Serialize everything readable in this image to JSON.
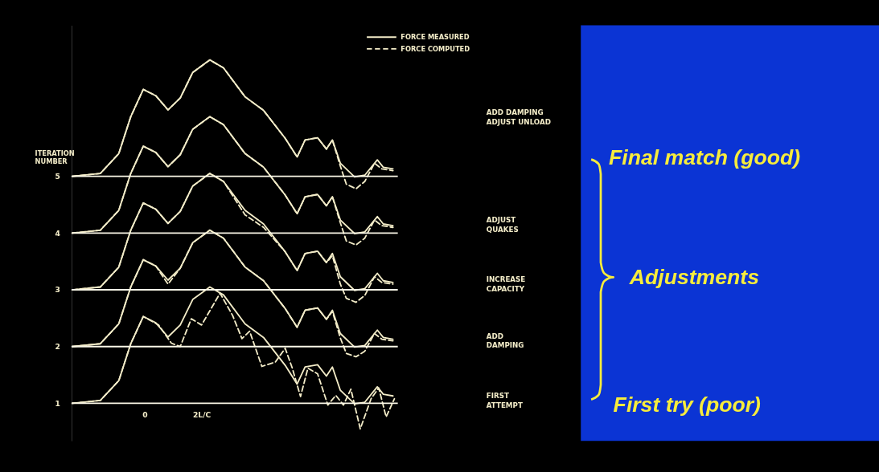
{
  "chart_data": {
    "type": "line",
    "ylabel": "ITERATION NUMBER",
    "xlim": [
      -2.57,
      8.9
    ],
    "xticks": [
      {
        "value": 0,
        "label": "0"
      },
      {
        "value": 2,
        "label": "2L/C"
      }
    ],
    "ylim": [
      0.34,
      7.66
    ],
    "yticks": [
      1,
      2,
      3,
      4,
      5
    ],
    "grid": false,
    "legend": "top right",
    "ref_lines": [
      {
        "axis": "y",
        "value": 1,
        "color": "#fbf8e8"
      },
      {
        "axis": "y",
        "value": 2,
        "color": "#fbf8e8"
      },
      {
        "axis": "y",
        "value": 3,
        "color": "#fbf8e8"
      },
      {
        "axis": "y",
        "value": 4,
        "color": "#fbf8e8"
      },
      {
        "axis": "y",
        "value": 5,
        "color": "#fbf8e8"
      }
    ],
    "series": [
      {
        "name": "FORCE MEASURED",
        "color": "#f3ecc8",
        "line_style": "solid",
        "x": [
          -2.55,
          -1.56,
          -0.91,
          -0.49,
          -0.05,
          0.39,
          0.82,
          1.25,
          1.69,
          2.29,
          2.77,
          3.53,
          4.18,
          4.94,
          5.36,
          5.64,
          6.08,
          6.39,
          6.6,
          6.88,
          7.38,
          7.74,
          8.18,
          8.39,
          8.73
        ],
        "values": [
          5,
          5.05,
          5.4,
          6.05,
          6.53,
          6.42,
          6.17,
          6.38,
          6.83,
          7.05,
          6.91,
          6.4,
          6.16,
          5.67,
          5.34,
          5.64,
          5.68,
          5.48,
          5.64,
          5.23,
          4.99,
          5.02,
          5.29,
          5.16,
          5.13
        ]
      },
      {
        "name": "FORCE COMPUTED",
        "color": "#f3ecc8",
        "line_style": "dashed",
        "x": [
          -2.55,
          -1.56,
          -0.91,
          -0.49,
          -0.05,
          0.39,
          0.82,
          1.25,
          1.69,
          2.29,
          2.77,
          3.53,
          4.18,
          4.94,
          5.36,
          5.64,
          6.08,
          6.39,
          6.6,
          6.88,
          7.09,
          7.43,
          7.74,
          8.08,
          8.34,
          8.73
        ],
        "values": [
          5,
          5.05,
          5.4,
          6.05,
          6.53,
          6.42,
          6.17,
          6.38,
          6.83,
          7.05,
          6.91,
          6.4,
          6.16,
          5.67,
          5.34,
          5.64,
          5.68,
          5.48,
          5.64,
          5.18,
          4.86,
          4.78,
          4.91,
          5.23,
          5.13,
          5.1
        ]
      },
      {
        "color": "#f3ecc8",
        "line_style": "solid",
        "x": [
          -2.55,
          -1.56,
          -0.91,
          -0.49,
          -0.05,
          0.39,
          0.82,
          1.25,
          1.69,
          2.29,
          2.77,
          3.53,
          4.18,
          4.94,
          5.36,
          5.64,
          6.08,
          6.39,
          6.6,
          6.88,
          7.38,
          7.74,
          8.18,
          8.39,
          8.73
        ],
        "values": [
          4,
          4.05,
          4.4,
          5.05,
          5.53,
          5.42,
          5.17,
          5.38,
          5.83,
          6.05,
          5.91,
          5.4,
          5.16,
          4.67,
          4.34,
          4.64,
          4.68,
          4.48,
          4.64,
          4.23,
          3.99,
          4.02,
          4.29,
          4.16,
          4.13
        ]
      },
      {
        "color": "#f3ecc8",
        "line_style": "dashed",
        "x": [
          -2.55,
          -1.56,
          -0.91,
          -0.49,
          -0.05,
          0.39,
          0.82,
          1.25,
          1.69,
          2.29,
          2.77,
          3.53,
          4.18,
          4.94,
          5.36,
          5.64,
          6.08,
          6.39,
          6.6,
          6.88,
          7.09,
          7.43,
          7.74,
          8.08,
          8.34,
          8.73
        ],
        "values": [
          4,
          4.05,
          4.4,
          5.05,
          5.53,
          5.42,
          5.17,
          5.38,
          5.83,
          6.05,
          5.91,
          5.4,
          5.16,
          4.67,
          4.34,
          4.64,
          4.68,
          4.48,
          4.64,
          4.18,
          3.86,
          3.79,
          3.91,
          4.23,
          4.13,
          4.1
        ]
      },
      {
        "color": "#f3ecc8",
        "line_style": "solid",
        "x": [
          -2.55,
          -1.56,
          -0.91,
          -0.49,
          -0.05,
          0.39,
          0.82,
          1.25,
          1.69,
          2.29,
          2.77,
          3.53,
          4.18,
          4.94,
          5.36,
          5.64,
          6.08,
          6.39,
          6.6,
          6.88,
          7.38,
          7.74,
          8.18,
          8.39,
          8.73
        ],
        "values": [
          3,
          3.05,
          3.4,
          4.05,
          4.53,
          4.42,
          4.17,
          4.38,
          4.83,
          5.05,
          4.91,
          4.4,
          4.16,
          3.67,
          3.34,
          3.64,
          3.68,
          3.48,
          3.64,
          3.23,
          2.99,
          3.02,
          3.29,
          3.16,
          3.13
        ]
      },
      {
        "color": "#f3ecc8",
        "line_style": "dashed",
        "x": [
          -2.55,
          -1.56,
          -0.91,
          -0.49,
          -0.05,
          0.39,
          0.82,
          1.25,
          1.69,
          2.29,
          2.77,
          3.53,
          4.18,
          4.94,
          5.36,
          5.64,
          6.08,
          6.39,
          6.6,
          6.88,
          7.09,
          7.43,
          7.74,
          8.08,
          8.34,
          8.73
        ],
        "values": [
          3,
          3.05,
          3.4,
          4.05,
          4.53,
          4.42,
          4.17,
          4.38,
          4.83,
          5.05,
          4.91,
          4.32,
          4.1,
          3.67,
          3.34,
          3.64,
          3.68,
          3.48,
          3.6,
          3.1,
          2.85,
          2.78,
          2.9,
          3.23,
          3.13,
          3.1
        ]
      },
      {
        "color": "#f3ecc8",
        "line_style": "solid",
        "x": [
          -2.55,
          -1.56,
          -0.91,
          -0.49,
          -0.05,
          0.39,
          0.82,
          1.25,
          1.69,
          2.29,
          2.77,
          3.53,
          4.18,
          4.94,
          5.36,
          5.64,
          6.08,
          6.39,
          6.6,
          6.88,
          7.38,
          7.74,
          8.18,
          8.39,
          8.73
        ],
        "values": [
          2,
          2.05,
          2.4,
          3.05,
          3.53,
          3.42,
          3.17,
          3.38,
          3.83,
          4.05,
          3.91,
          3.4,
          3.16,
          2.67,
          2.34,
          2.64,
          2.68,
          2.48,
          2.64,
          2.23,
          1.99,
          2.02,
          2.29,
          2.16,
          2.13
        ]
      },
      {
        "color": "#f3ecc8",
        "line_style": "dashed",
        "x": [
          -2.55,
          -1.56,
          -0.91,
          -0.49,
          -0.05,
          0.39,
          0.82,
          1.25,
          1.69,
          2.29,
          2.77,
          3.53,
          4.18,
          4.94,
          5.36,
          5.64,
          6.08,
          6.39,
          6.6,
          6.88,
          7.09,
          7.43,
          7.74,
          8.08,
          8.34,
          8.73
        ],
        "values": [
          2,
          2.05,
          2.4,
          3.05,
          3.53,
          3.42,
          3.1,
          3.38,
          3.83,
          4.05,
          3.91,
          3.4,
          3.16,
          2.67,
          2.34,
          2.64,
          2.68,
          2.48,
          2.62,
          2.15,
          1.88,
          1.82,
          1.92,
          2.23,
          2.13,
          2.1
        ]
      },
      {
        "color": "#f3ecc8",
        "line_style": "solid",
        "x": [
          -2.55,
          -1.56,
          -0.91,
          -0.49,
          -0.05,
          0.39,
          0.82,
          1.25,
          1.69,
          2.29,
          2.77,
          3.53,
          4.18,
          4.94,
          5.36,
          5.64,
          6.08,
          6.39,
          6.6,
          6.88,
          7.38,
          7.74,
          8.18,
          8.39,
          8.73
        ],
        "values": [
          1,
          1.05,
          1.4,
          2.05,
          2.53,
          2.42,
          2.17,
          2.38,
          2.83,
          3.05,
          2.91,
          2.4,
          2.16,
          1.67,
          1.34,
          1.64,
          1.68,
          1.48,
          1.64,
          1.23,
          0.99,
          1.02,
          1.29,
          1.16,
          1.13
        ]
      },
      {
        "color": "#f3ecc8",
        "line_style": "dashed",
        "x": [
          -2.55,
          -1.56,
          -0.91,
          -0.49,
          -0.05,
          0.49,
          0.94,
          1.25,
          1.64,
          2.0,
          2.65,
          3.09,
          3.42,
          3.69,
          4.12,
          4.6,
          4.94,
          5.19,
          5.48,
          5.74,
          6.08,
          6.44,
          6.72,
          6.99,
          7.25,
          7.58,
          7.96,
          8.23,
          8.49,
          8.78
        ],
        "values": [
          1,
          1.05,
          1.4,
          2.05,
          2.53,
          2.38,
          2.06,
          2.0,
          2.49,
          2.38,
          2.94,
          2.55,
          2.14,
          2.27,
          1.65,
          1.73,
          1.97,
          1.62,
          1.12,
          1.62,
          1.52,
          0.97,
          1.14,
          0.97,
          1.25,
          0.55,
          1.08,
          1.27,
          0.76,
          1.08
        ]
      }
    ],
    "annotations": [
      "ADD DAMPING\nADJUST UNLOAD",
      "ADJUST\nQUAKES",
      "INCREASE\nCAPACITY",
      "ADD\nDAMPING",
      "FIRST\nATTEMPT",
      "Final match (good)",
      "Adjustments",
      "First try  (poor)"
    ]
  }
}
